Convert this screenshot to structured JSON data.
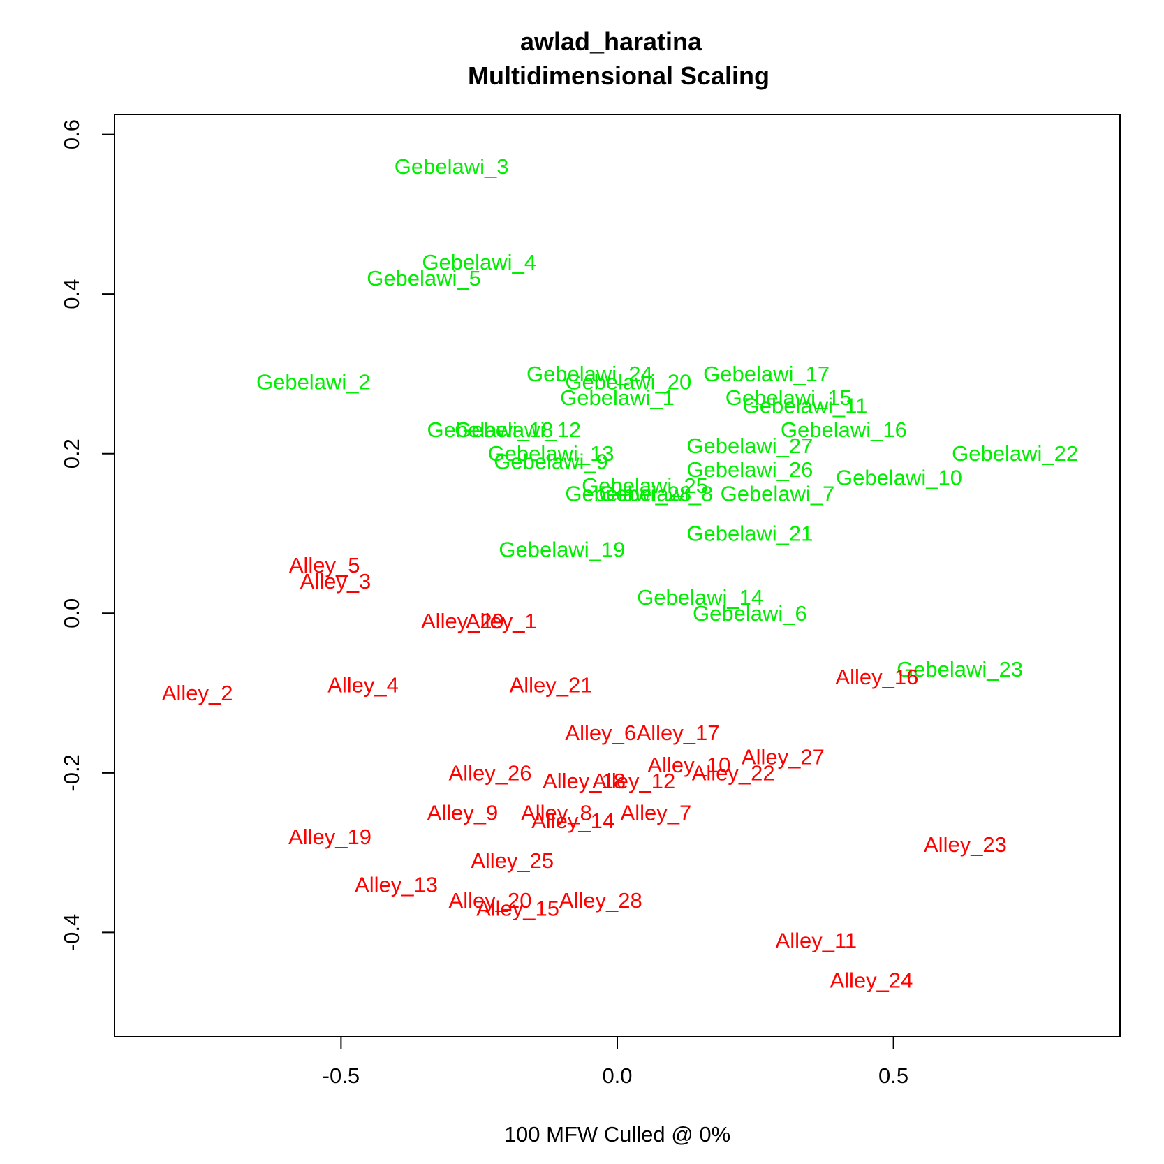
{
  "chart_data": {
    "type": "scatter",
    "title": "awlad_haratina",
    "subtitle": "Multidimensional Scaling",
    "xlabel": "100 MFW  Culled @ 0%",
    "ylabel": "",
    "xlim": [
      -0.91,
      0.91
    ],
    "ylim": [
      -0.53,
      0.625
    ],
    "x_ticks": [
      -0.5,
      0.0,
      0.5
    ],
    "y_ticks": [
      -0.4,
      -0.2,
      0.0,
      0.2,
      0.4,
      0.6
    ],
    "x_tick_labels": [
      "-0.5",
      "0.0",
      "0.5"
    ],
    "y_tick_labels": [
      "-0.4",
      "-0.2",
      "0.0",
      "0.2",
      "0.4",
      "0.6"
    ],
    "grid": false,
    "marker": "text-label",
    "series": [
      {
        "name": "Gebelawi",
        "color": "#00ee00",
        "points": [
          {
            "label": "Gebelawi_3",
            "x": -0.3,
            "y": 0.56
          },
          {
            "label": "Gebelawi_4",
            "x": -0.25,
            "y": 0.44
          },
          {
            "label": "Gebelawi_5",
            "x": -0.35,
            "y": 0.42
          },
          {
            "label": "Gebelawi_2",
            "x": -0.55,
            "y": 0.29
          },
          {
            "label": "Gebelawi_24",
            "x": -0.05,
            "y": 0.3
          },
          {
            "label": "Gebelawi_20",
            "x": 0.02,
            "y": 0.29
          },
          {
            "label": "Gebelawi_17",
            "x": 0.27,
            "y": 0.3
          },
          {
            "label": "Gebelawi_1",
            "x": 0.0,
            "y": 0.27
          },
          {
            "label": "Gebelawi_15",
            "x": 0.31,
            "y": 0.27
          },
          {
            "label": "Gebelawi_11",
            "x": 0.34,
            "y": 0.26
          },
          {
            "label": "Gebelawi_16",
            "x": 0.41,
            "y": 0.23
          },
          {
            "label": "Gebelawi_18",
            "x": -0.23,
            "y": 0.23
          },
          {
            "label": "Gebelawi_12",
            "x": -0.18,
            "y": 0.23
          },
          {
            "label": "Gebelawi_27",
            "x": 0.24,
            "y": 0.21
          },
          {
            "label": "Gebelawi_22",
            "x": 0.72,
            "y": 0.2
          },
          {
            "label": "Gebelawi_13",
            "x": -0.12,
            "y": 0.2
          },
          {
            "label": "Gebelawi_9",
            "x": -0.12,
            "y": 0.19
          },
          {
            "label": "Gebelawi_26",
            "x": 0.24,
            "y": 0.18
          },
          {
            "label": "Gebelawi_10",
            "x": 0.51,
            "y": 0.17
          },
          {
            "label": "Gebelawi_25",
            "x": 0.05,
            "y": 0.16
          },
          {
            "label": "Gebelawi_28",
            "x": 0.02,
            "y": 0.15
          },
          {
            "label": "Gebelawi_8",
            "x": 0.07,
            "y": 0.15
          },
          {
            "label": "Gebelawi_7",
            "x": 0.29,
            "y": 0.15
          },
          {
            "label": "Gebelawi_21",
            "x": 0.24,
            "y": 0.1
          },
          {
            "label": "Gebelawi_19",
            "x": -0.1,
            "y": 0.08
          },
          {
            "label": "Gebelawi_14",
            "x": 0.15,
            "y": 0.02
          },
          {
            "label": "Gebelawi_6",
            "x": 0.24,
            "y": 0.0
          },
          {
            "label": "Gebelawi_23",
            "x": 0.62,
            "y": -0.07
          }
        ]
      },
      {
        "name": "Alley",
        "color": "#ff0000",
        "points": [
          {
            "label": "Alley_5",
            "x": -0.53,
            "y": 0.06
          },
          {
            "label": "Alley_3",
            "x": -0.51,
            "y": 0.04
          },
          {
            "label": "Alley_29",
            "x": -0.28,
            "y": -0.01
          },
          {
            "label": "Alley_1",
            "x": -0.21,
            "y": -0.01
          },
          {
            "label": "Alley_2",
            "x": -0.76,
            "y": -0.1
          },
          {
            "label": "Alley_4",
            "x": -0.46,
            "y": -0.09
          },
          {
            "label": "Alley_21",
            "x": -0.12,
            "y": -0.09
          },
          {
            "label": "Alley_16",
            "x": 0.47,
            "y": -0.08
          },
          {
            "label": "Alley_6",
            "x": -0.03,
            "y": -0.15
          },
          {
            "label": "Alley_17",
            "x": 0.11,
            "y": -0.15
          },
          {
            "label": "Alley_27",
            "x": 0.3,
            "y": -0.18
          },
          {
            "label": "Alley_10",
            "x": 0.13,
            "y": -0.19
          },
          {
            "label": "Alley_22",
            "x": 0.21,
            "y": -0.2
          },
          {
            "label": "Alley_26",
            "x": -0.23,
            "y": -0.2
          },
          {
            "label": "Alley_18",
            "x": -0.06,
            "y": -0.21
          },
          {
            "label": "Alley_12",
            "x": 0.03,
            "y": -0.21
          },
          {
            "label": "Alley_9",
            "x": -0.28,
            "y": -0.25
          },
          {
            "label": "Alley_8",
            "x": -0.11,
            "y": -0.25
          },
          {
            "label": "Alley_7",
            "x": 0.07,
            "y": -0.25
          },
          {
            "label": "Alley_14",
            "x": -0.08,
            "y": -0.26
          },
          {
            "label": "Alley_19",
            "x": -0.52,
            "y": -0.28
          },
          {
            "label": "Alley_23",
            "x": 0.63,
            "y": -0.29
          },
          {
            "label": "Alley_25",
            "x": -0.19,
            "y": -0.31
          },
          {
            "label": "Alley_13",
            "x": -0.4,
            "y": -0.34
          },
          {
            "label": "Alley_20",
            "x": -0.23,
            "y": -0.36
          },
          {
            "label": "Alley_15",
            "x": -0.18,
            "y": -0.37
          },
          {
            "label": "Alley_28",
            "x": -0.03,
            "y": -0.36
          },
          {
            "label": "Alley_11",
            "x": 0.36,
            "y": -0.41
          },
          {
            "label": "Alley_24",
            "x": 0.46,
            "y": -0.46
          }
        ]
      }
    ]
  }
}
